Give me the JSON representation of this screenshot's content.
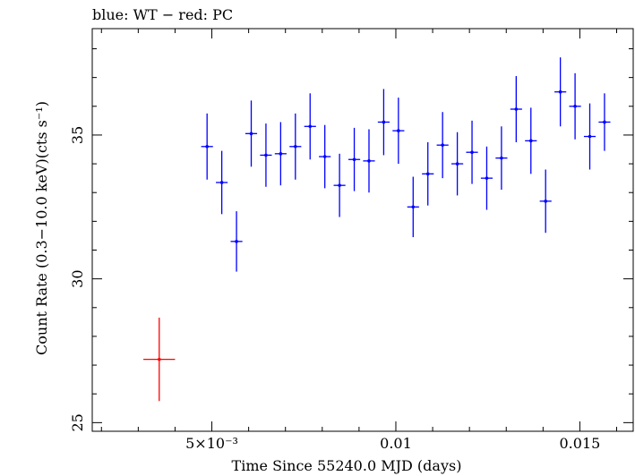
{
  "chart_data": {
    "type": "scatter",
    "title": "blue: WT − red: PC",
    "xlabel": "Time Since 55240.0 MJD (days)",
    "ylabel": "Count Rate (0.3−10.0 keV)(cts s⁻¹)",
    "xlim": [
      0.00175,
      0.01645
    ],
    "ylim": [
      24.7,
      38.7
    ],
    "xticks": [
      {
        "value": 0.005,
        "label": "5×10⁻³"
      },
      {
        "value": 0.01,
        "label": "0.01"
      },
      {
        "value": 0.015,
        "label": "0.015"
      }
    ],
    "yticks": [
      {
        "value": 25,
        "label": "25"
      },
      {
        "value": 30,
        "label": "30"
      },
      {
        "value": 35,
        "label": "35"
      }
    ],
    "grid": false,
    "series": [
      {
        "color": "#0000ff",
        "points": [
          {
            "x": 0.00487,
            "y": 34.6,
            "xerr": 0.00016,
            "yerr": 1.15
          },
          {
            "x": 0.00527,
            "y": 33.35,
            "xerr": 0.00016,
            "yerr": 1.1
          },
          {
            "x": 0.00567,
            "y": 31.3,
            "xerr": 0.00016,
            "yerr": 1.05
          },
          {
            "x": 0.00607,
            "y": 35.05,
            "xerr": 0.00016,
            "yerr": 1.15
          },
          {
            "x": 0.00647,
            "y": 34.3,
            "xerr": 0.00016,
            "yerr": 1.1
          },
          {
            "x": 0.00687,
            "y": 34.35,
            "xerr": 0.00016,
            "yerr": 1.1
          },
          {
            "x": 0.00727,
            "y": 34.6,
            "xerr": 0.00016,
            "yerr": 1.15
          },
          {
            "x": 0.00767,
            "y": 35.3,
            "xerr": 0.00016,
            "yerr": 1.15
          },
          {
            "x": 0.00807,
            "y": 34.25,
            "xerr": 0.00016,
            "yerr": 1.1
          },
          {
            "x": 0.00847,
            "y": 33.25,
            "xerr": 0.00016,
            "yerr": 1.1
          },
          {
            "x": 0.00887,
            "y": 34.15,
            "xerr": 0.00016,
            "yerr": 1.1
          },
          {
            "x": 0.00927,
            "y": 34.1,
            "xerr": 0.00016,
            "yerr": 1.1
          },
          {
            "x": 0.00967,
            "y": 35.45,
            "xerr": 0.00016,
            "yerr": 1.15
          },
          {
            "x": 0.01007,
            "y": 35.15,
            "xerr": 0.00016,
            "yerr": 1.15
          },
          {
            "x": 0.01047,
            "y": 32.5,
            "xerr": 0.00016,
            "yerr": 1.05
          },
          {
            "x": 0.01087,
            "y": 33.65,
            "xerr": 0.00016,
            "yerr": 1.1
          },
          {
            "x": 0.01127,
            "y": 34.65,
            "xerr": 0.00016,
            "yerr": 1.15
          },
          {
            "x": 0.01167,
            "y": 34.0,
            "xerr": 0.00016,
            "yerr": 1.1
          },
          {
            "x": 0.01207,
            "y": 34.4,
            "xerr": 0.00016,
            "yerr": 1.1
          },
          {
            "x": 0.01247,
            "y": 33.5,
            "xerr": 0.00016,
            "yerr": 1.1
          },
          {
            "x": 0.01287,
            "y": 34.2,
            "xerr": 0.00016,
            "yerr": 1.1
          },
          {
            "x": 0.01327,
            "y": 35.9,
            "xerr": 0.00016,
            "yerr": 1.15
          },
          {
            "x": 0.01367,
            "y": 34.8,
            "xerr": 0.00016,
            "yerr": 1.15
          },
          {
            "x": 0.01407,
            "y": 32.7,
            "xerr": 0.00016,
            "yerr": 1.1
          },
          {
            "x": 0.01447,
            "y": 36.5,
            "xerr": 0.00016,
            "yerr": 1.2
          },
          {
            "x": 0.01487,
            "y": 36.0,
            "xerr": 0.00016,
            "yerr": 1.15
          },
          {
            "x": 0.01527,
            "y": 34.95,
            "xerr": 0.00016,
            "yerr": 1.15
          },
          {
            "x": 0.01567,
            "y": 35.45,
            "xerr": 0.00016,
            "yerr": 1.0
          }
        ]
      },
      {
        "color": "#ff0000",
        "points": [
          {
            "x": 0.00357,
            "y": 27.2,
            "xerr": 0.00043,
            "yerr": 1.45
          }
        ]
      }
    ]
  }
}
